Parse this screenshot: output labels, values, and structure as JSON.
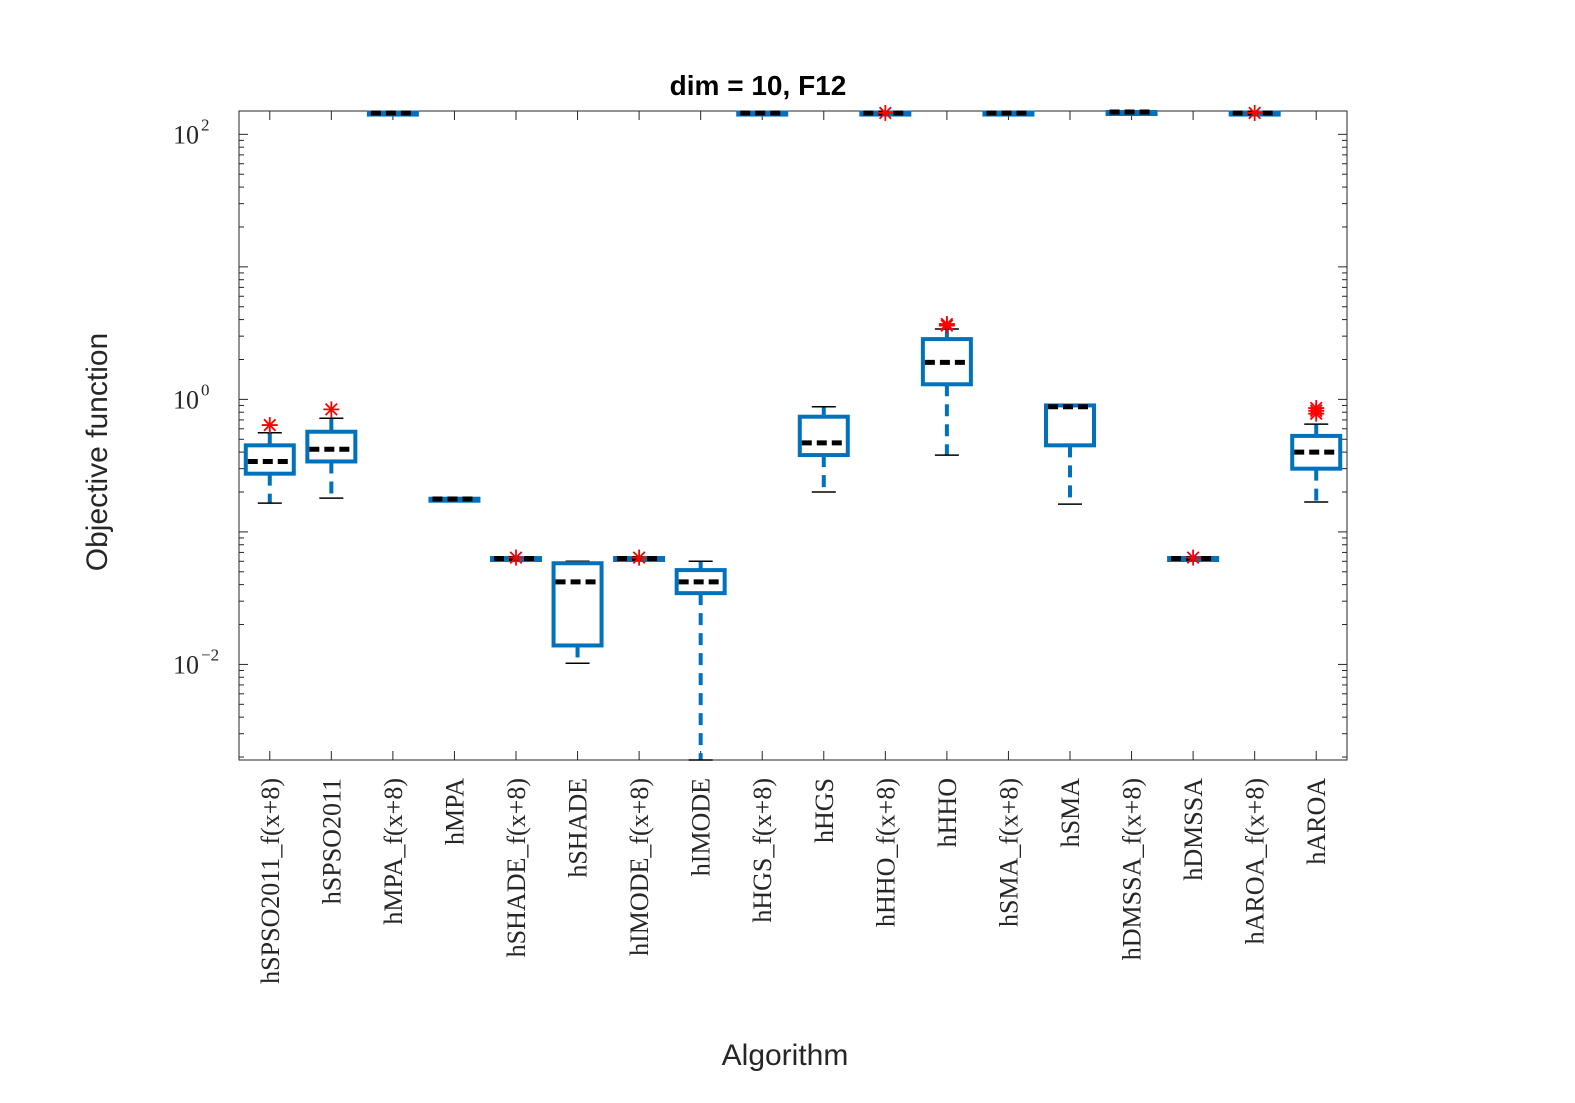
{
  "chart_data": {
    "type": "box",
    "title": "dim = 10,  F12",
    "xlabel": "Algorithm",
    "ylabel": "Objective function",
    "yscale": "log",
    "ylim": [
      0.0019,
      150
    ],
    "yticks": [
      {
        "value": 0.01,
        "base": "10",
        "exp": "−2"
      },
      {
        "value": 1,
        "base": "10",
        "exp": "0"
      },
      {
        "value": 100,
        "base": "10",
        "exp": "2"
      }
    ],
    "colors": {
      "box": "#0072BD",
      "median": "#000000",
      "outlier": "#FF0000",
      "axis": "#262626"
    },
    "categories": [
      "hSPSO2011_f(x+8)",
      "hSPSO2011",
      "hMPA_f(x+8)",
      "hMPA",
      "hSHADE_f(x+8)",
      "hSHADE",
      "hIMODE_f(x+8)",
      "hIMODE",
      "hHGS_f(x+8)",
      "hHGS",
      "hHHO_f(x+8)",
      "hHHO",
      "hSMA_f(x+8)",
      "hSMA",
      "hDMSSA_f(x+8)",
      "hDMSSA",
      "hAROA_f(x+8)",
      "hAROA"
    ],
    "boxes": [
      {
        "whislo": 0.165,
        "q1": 0.275,
        "med": 0.34,
        "q3": 0.45,
        "whishi": 0.56,
        "outliers": [
          0.64
        ]
      },
      {
        "whislo": 0.18,
        "q1": 0.34,
        "med": 0.42,
        "q3": 0.57,
        "whishi": 0.72,
        "outliers": [
          0.84
        ]
      },
      {
        "whislo": 144,
        "q1": 144,
        "med": 145,
        "q3": 146,
        "whishi": 146,
        "outliers": []
      },
      {
        "whislo": 0.176,
        "q1": 0.176,
        "med": 0.177,
        "q3": 0.178,
        "whishi": 0.178,
        "outliers": []
      },
      {
        "whislo": 0.0625,
        "q1": 0.0625,
        "med": 0.063,
        "q3": 0.0635,
        "whishi": 0.0635,
        "outliers": [
          0.064
        ]
      },
      {
        "whislo": 0.0102,
        "q1": 0.0139,
        "med": 0.042,
        "q3": 0.058,
        "whishi": 0.06,
        "outliers": []
      },
      {
        "whislo": 0.0625,
        "q1": 0.0625,
        "med": 0.063,
        "q3": 0.0635,
        "whishi": 0.0635,
        "outliers": [
          0.064
        ]
      },
      {
        "whislo": 0.0019,
        "q1": 0.0345,
        "med": 0.042,
        "q3": 0.0515,
        "whishi": 0.06,
        "outliers": []
      },
      {
        "whislo": 144,
        "q1": 144,
        "med": 145,
        "q3": 146,
        "whishi": 146,
        "outliers": []
      },
      {
        "whislo": 0.2,
        "q1": 0.38,
        "med": 0.47,
        "q3": 0.74,
        "whishi": 0.88,
        "outliers": []
      },
      {
        "whislo": 144,
        "q1": 144,
        "med": 145,
        "q3": 146,
        "whishi": 146,
        "outliers": [
          145
        ]
      },
      {
        "whislo": 0.38,
        "q1": 1.3,
        "med": 1.9,
        "q3": 2.85,
        "whishi": 3.4,
        "outliers": [
          3.6,
          3.7
        ]
      },
      {
        "whislo": 144,
        "q1": 144,
        "med": 145,
        "q3": 146,
        "whishi": 146,
        "outliers": []
      },
      {
        "whislo": 0.162,
        "q1": 0.45,
        "med": 0.88,
        "q3": 0.9,
        "whishi": 0.9,
        "outliers": []
      },
      {
        "whislo": 148,
        "q1": 148,
        "med": 149,
        "q3": 150,
        "whishi": 150,
        "outliers": []
      },
      {
        "whislo": 0.0625,
        "q1": 0.0625,
        "med": 0.063,
        "q3": 0.0635,
        "whishi": 0.0635,
        "outliers": [
          0.064
        ]
      },
      {
        "whislo": 144,
        "q1": 144,
        "med": 145,
        "q3": 146,
        "whishi": 146,
        "outliers": [
          145
        ]
      },
      {
        "whislo": 0.168,
        "q1": 0.3,
        "med": 0.4,
        "q3": 0.53,
        "whishi": 0.65,
        "outliers": [
          0.78,
          0.82,
          0.86
        ]
      }
    ]
  }
}
